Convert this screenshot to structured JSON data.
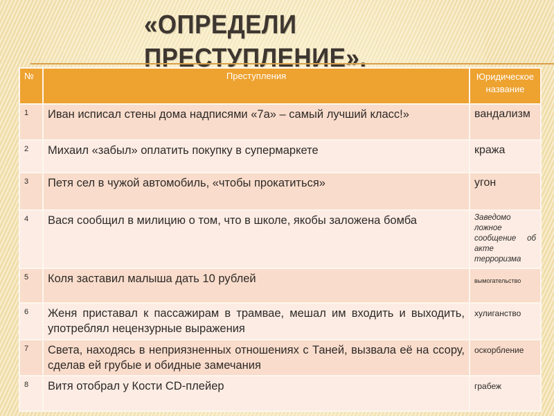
{
  "title_line1": "«ОПРЕДЕЛИ",
  "title_line2": "ПРЕСТУПЛЕНИЕ».",
  "table": {
    "headers": [
      "№",
      "Преступления",
      "Юридическое название"
    ],
    "rows": [
      {
        "num": "1",
        "crime": "Иван исписал стены дома надписями «7а» – самый лучший класс!»",
        "legal": "вандализм"
      },
      {
        "num": "2",
        "crime": "Михаил «забыл» оплатить покупку в супермаркете",
        "legal": "кража"
      },
      {
        "num": "3",
        "crime": "Петя сел в чужой автомобиль, «чтобы прокатиться»",
        "legal": "угон"
      },
      {
        "num": "4",
        "crime": "Вася сообщил в милицию о том, что в школе, якобы заложена бомба",
        "legal": "Заведомо ложное сообщение об акте терроризма"
      },
      {
        "num": "5",
        "crime": "Коля заставил малыша дать 10 рублей",
        "legal": "вымогательство"
      },
      {
        "num": "6",
        "crime": "Женя приставал к пассажирам в трамвае, мешал им входить и выходить, употреблял нецензурные выражения",
        "legal": "хулиганство"
      },
      {
        "num": "7",
        "crime": "Света, находясь в неприязненных отношениях с Таней, вызвала её на ссору, сделав ей грубые и обидные замечания",
        "legal": "оскорбление"
      },
      {
        "num": "8",
        "crime": "Витя отобрал у Кости CD-плейер",
        "legal": "грабеж"
      }
    ]
  },
  "colors": {
    "header": "#eea230",
    "row_odd": "#f9dccb",
    "row_even": "#fcece4",
    "rule": "#d9a04a"
  }
}
